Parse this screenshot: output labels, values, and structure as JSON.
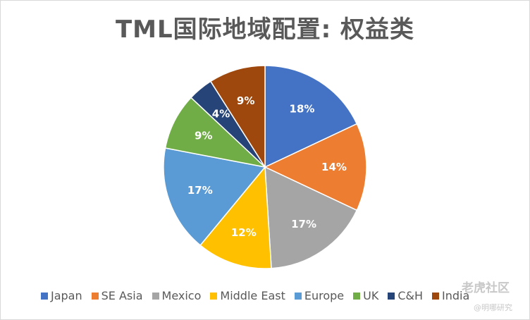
{
  "chart_data": {
    "type": "pie",
    "title": "TML国际地域配置: 权益类",
    "slices": [
      {
        "label": "Japan",
        "value": 18,
        "display": "18%",
        "color": "#4472c4"
      },
      {
        "label": "SE Asia",
        "value": 14,
        "display": "14%",
        "color": "#ed7d31"
      },
      {
        "label": "Mexico",
        "value": 17,
        "display": "17%",
        "color": "#a5a5a5"
      },
      {
        "label": "Middle East",
        "value": 12,
        "display": "12%",
        "color": "#ffc000"
      },
      {
        "label": "Europe",
        "value": 17,
        "display": "17%",
        "color": "#5b9bd5"
      },
      {
        "label": "UK",
        "value": 9,
        "display": "9%",
        "color": "#70ad47"
      },
      {
        "label": "C&H",
        "value": 4,
        "display": "4%",
        "color": "#264478"
      },
      {
        "label": "India",
        "value": 9,
        "display": "9%",
        "color": "#9e480e"
      }
    ],
    "legend_position": "bottom"
  },
  "watermark": {
    "text": "老虎社区",
    "subtext": "@明哪研究"
  }
}
